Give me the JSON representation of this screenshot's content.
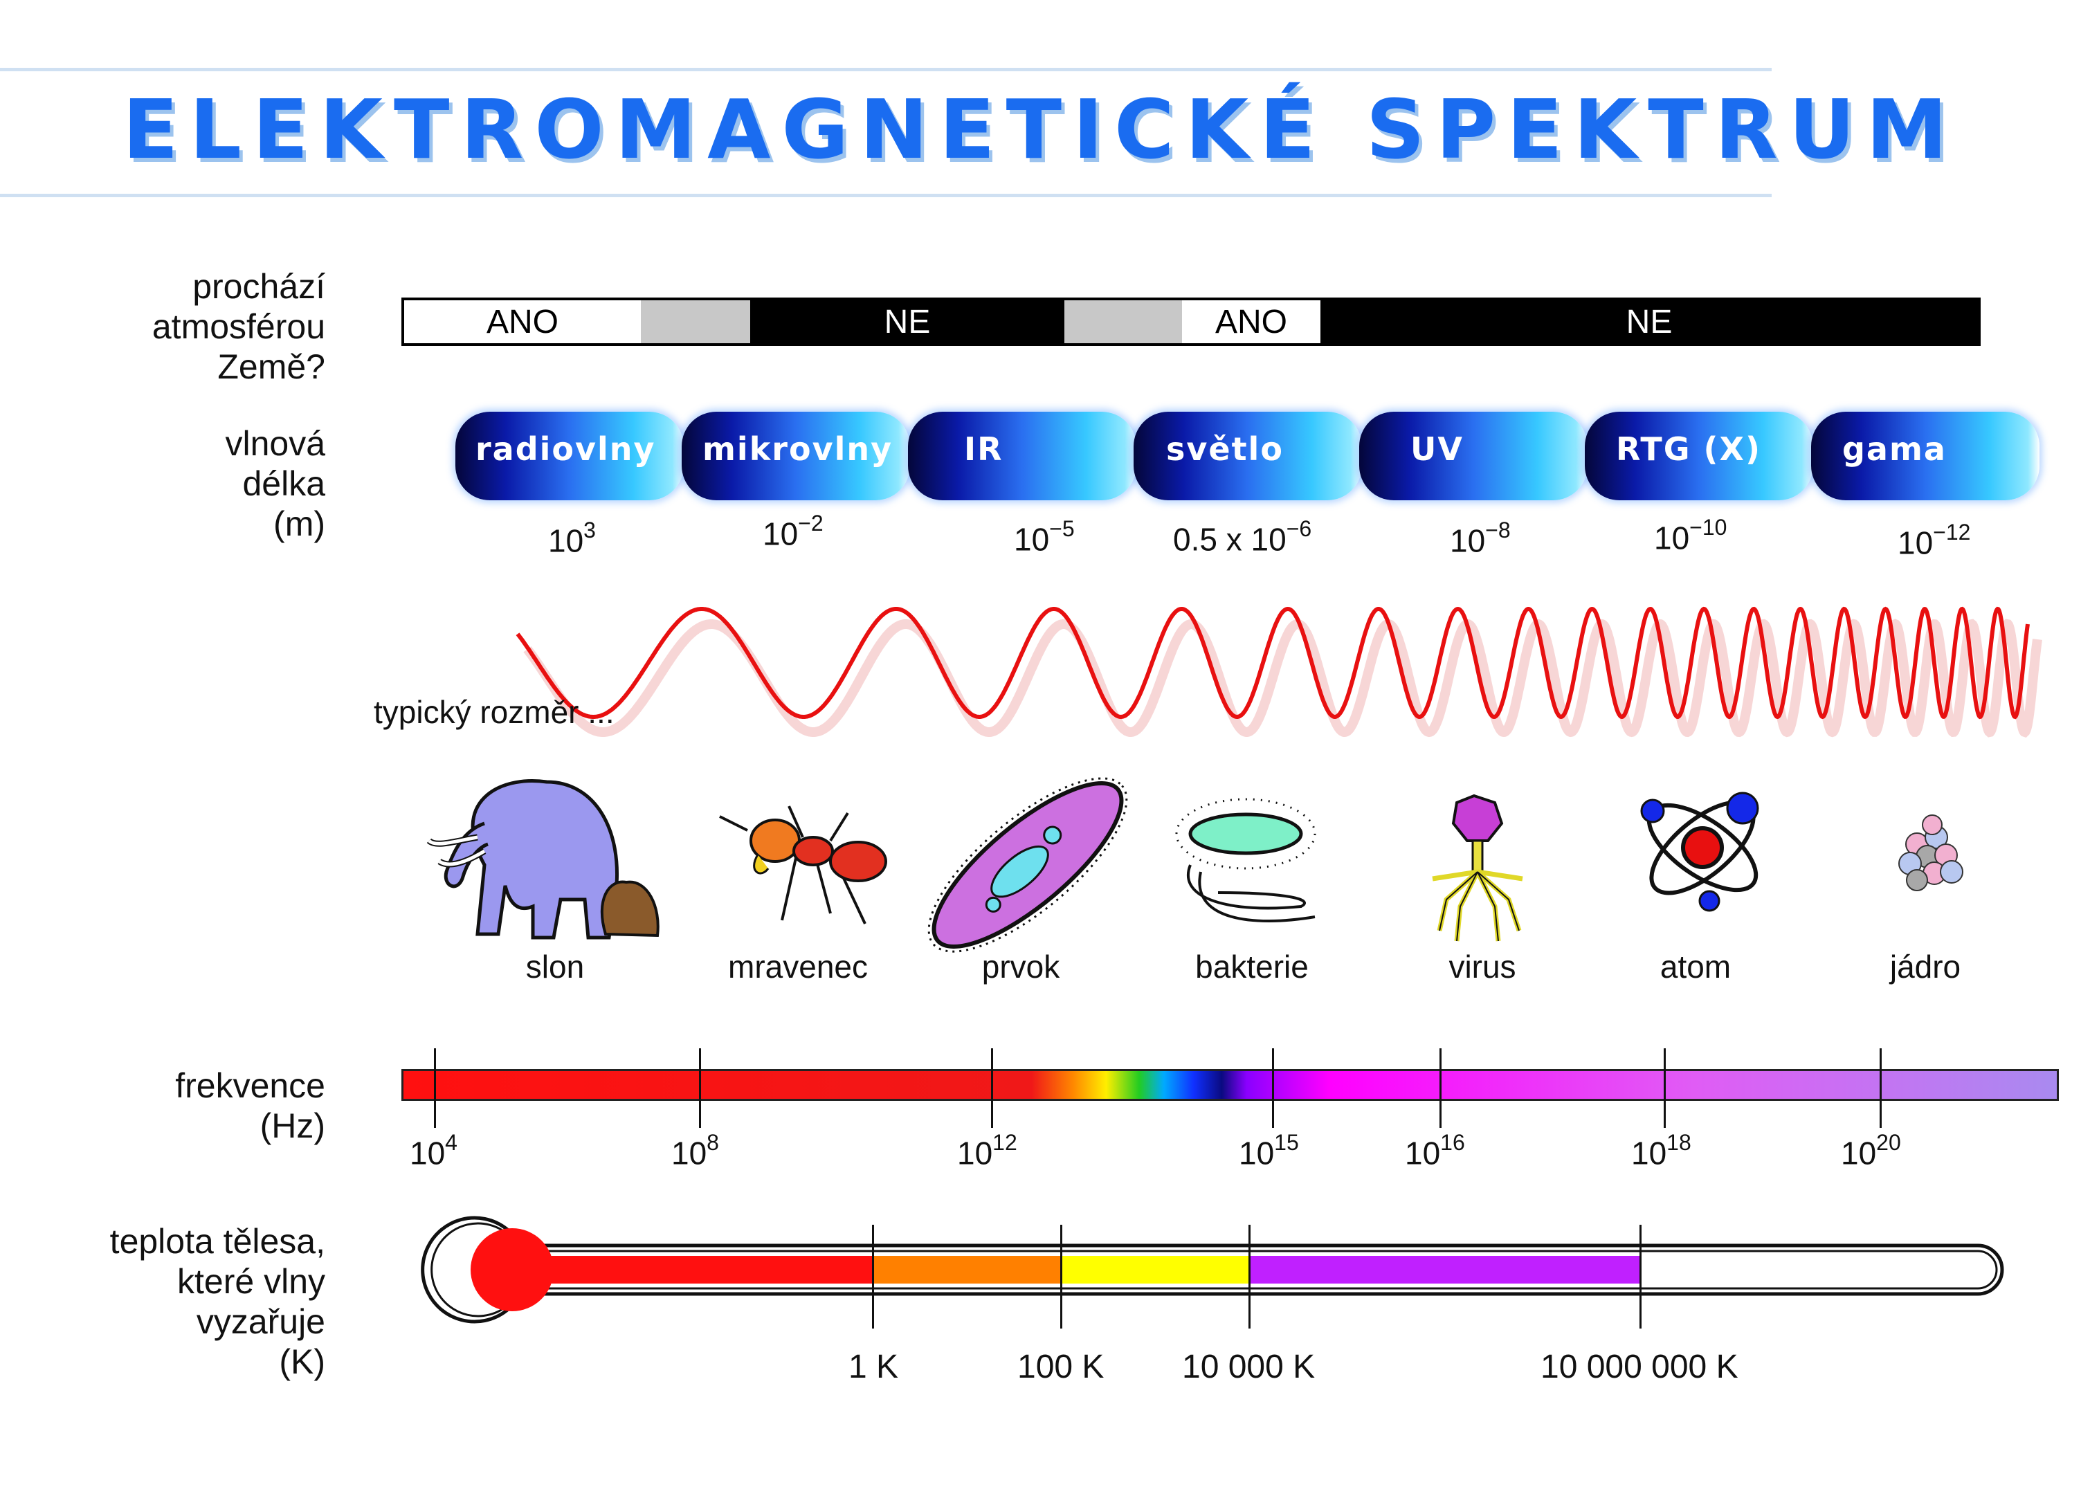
{
  "title": "ELEKTROMAGNETICKÉ SPEKTRUM",
  "atmosphere": {
    "label": [
      "prochází",
      "atmosférou",
      "Země?"
    ],
    "segments": [
      "ANO",
      "",
      "NE",
      "",
      "ANO",
      "NE"
    ]
  },
  "wavelength": {
    "label": [
      "vlnová",
      "délka",
      "(m)"
    ],
    "bands": [
      "radiovlny",
      "mikrovlny",
      "IR",
      "světlo",
      "UV",
      "RTG (X)",
      "gama"
    ],
    "values": [
      {
        "prefix": "",
        "base": "10",
        "exp": "3"
      },
      {
        "prefix": "",
        "base": "10",
        "exp": "−2"
      },
      {
        "prefix": "",
        "base": "10",
        "exp": "−5"
      },
      {
        "prefix": "0.5 x ",
        "base": "10",
        "exp": "−6"
      },
      {
        "prefix": "",
        "base": "10",
        "exp": "−8"
      },
      {
        "prefix": "",
        "base": "10",
        "exp": "−10"
      },
      {
        "prefix": "",
        "base": "10",
        "exp": "−12"
      }
    ]
  },
  "size": {
    "label": "typický rozměr ...",
    "items": [
      "slon",
      "mravenec",
      "prvok",
      "bakterie",
      "virus",
      "atom",
      "jádro"
    ]
  },
  "frequency": {
    "label": [
      "frekvence",
      "(Hz)"
    ],
    "ticks": [
      {
        "base": "10",
        "exp": "4"
      },
      {
        "base": "10",
        "exp": "8"
      },
      {
        "base": "10",
        "exp": "12"
      },
      {
        "base": "10",
        "exp": "15"
      },
      {
        "base": "10",
        "exp": "16"
      },
      {
        "base": "10",
        "exp": "18"
      },
      {
        "base": "10",
        "exp": "20"
      }
    ]
  },
  "temperature": {
    "label": [
      "teplota tělesa,",
      "které vlny",
      "vyzařuje",
      "(K)"
    ],
    "ticks": [
      "1 K",
      "100 K",
      "10 000 K",
      "10 000 000 K"
    ]
  },
  "colors": {
    "title": "#1a6cf0",
    "wave": "#e81010",
    "thermo_red": "#ff1010",
    "thermo_orange": "#ff8000",
    "thermo_yellow": "#ffff00",
    "thermo_purple": "#c020ff"
  }
}
